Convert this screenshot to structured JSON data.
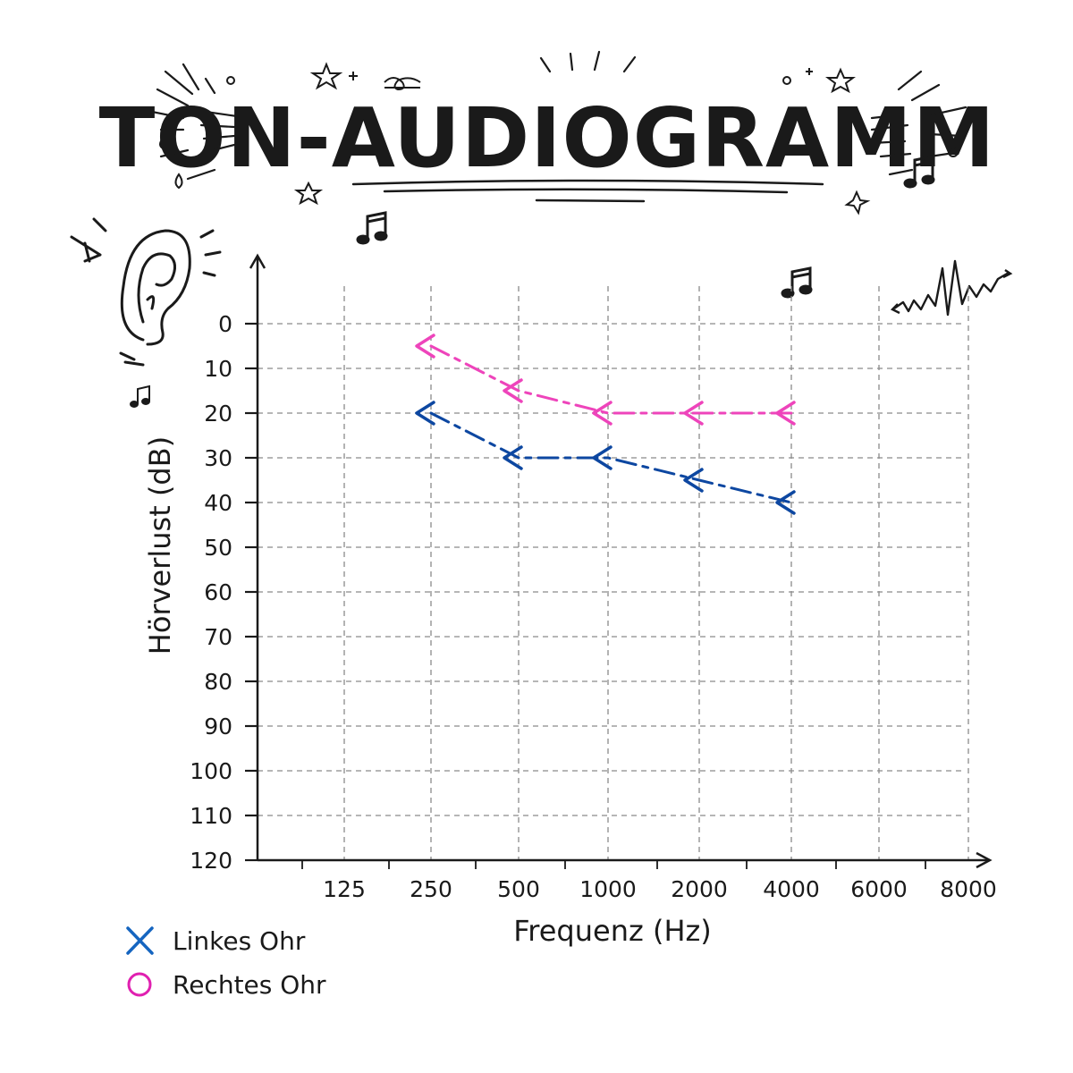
{
  "title": "TON-AUDIOGRAMM",
  "chart_data": {
    "type": "line",
    "xlabel": "Frequenz (Hz)",
    "ylabel": "Hörverlust (dB)",
    "x_ticks": [
      "125",
      "250",
      "500",
      "1000",
      "2000",
      "4000",
      "6000",
      "8000"
    ],
    "y_ticks": [
      0,
      10,
      20,
      30,
      40,
      50,
      60,
      70,
      80,
      90,
      100,
      110,
      120
    ],
    "ylim": [
      0,
      120
    ],
    "y_inverted": true,
    "grid": true,
    "legend_position": "bottom-left",
    "series": [
      {
        "name": "Linkes Ohr",
        "marker": "<",
        "color": "#0d47a1",
        "legend_marker": "X",
        "legend_color": "#1565c0",
        "x": [
          "250",
          "500",
          "1000",
          "2000",
          "4000"
        ],
        "values": [
          20,
          30,
          30,
          35,
          40
        ]
      },
      {
        "name": "Rechtes Ohr",
        "marker": "<",
        "color": "#ee44bb",
        "legend_marker": "O",
        "legend_color": "#e020b0",
        "x": [
          "250",
          "500",
          "1000",
          "2000",
          "4000"
        ],
        "values": [
          5,
          15,
          20,
          20,
          20
        ]
      }
    ]
  },
  "decorations": {
    "icons": [
      "ear-icon",
      "music-note-icon",
      "star-icon",
      "sound-wave-icon"
    ]
  }
}
